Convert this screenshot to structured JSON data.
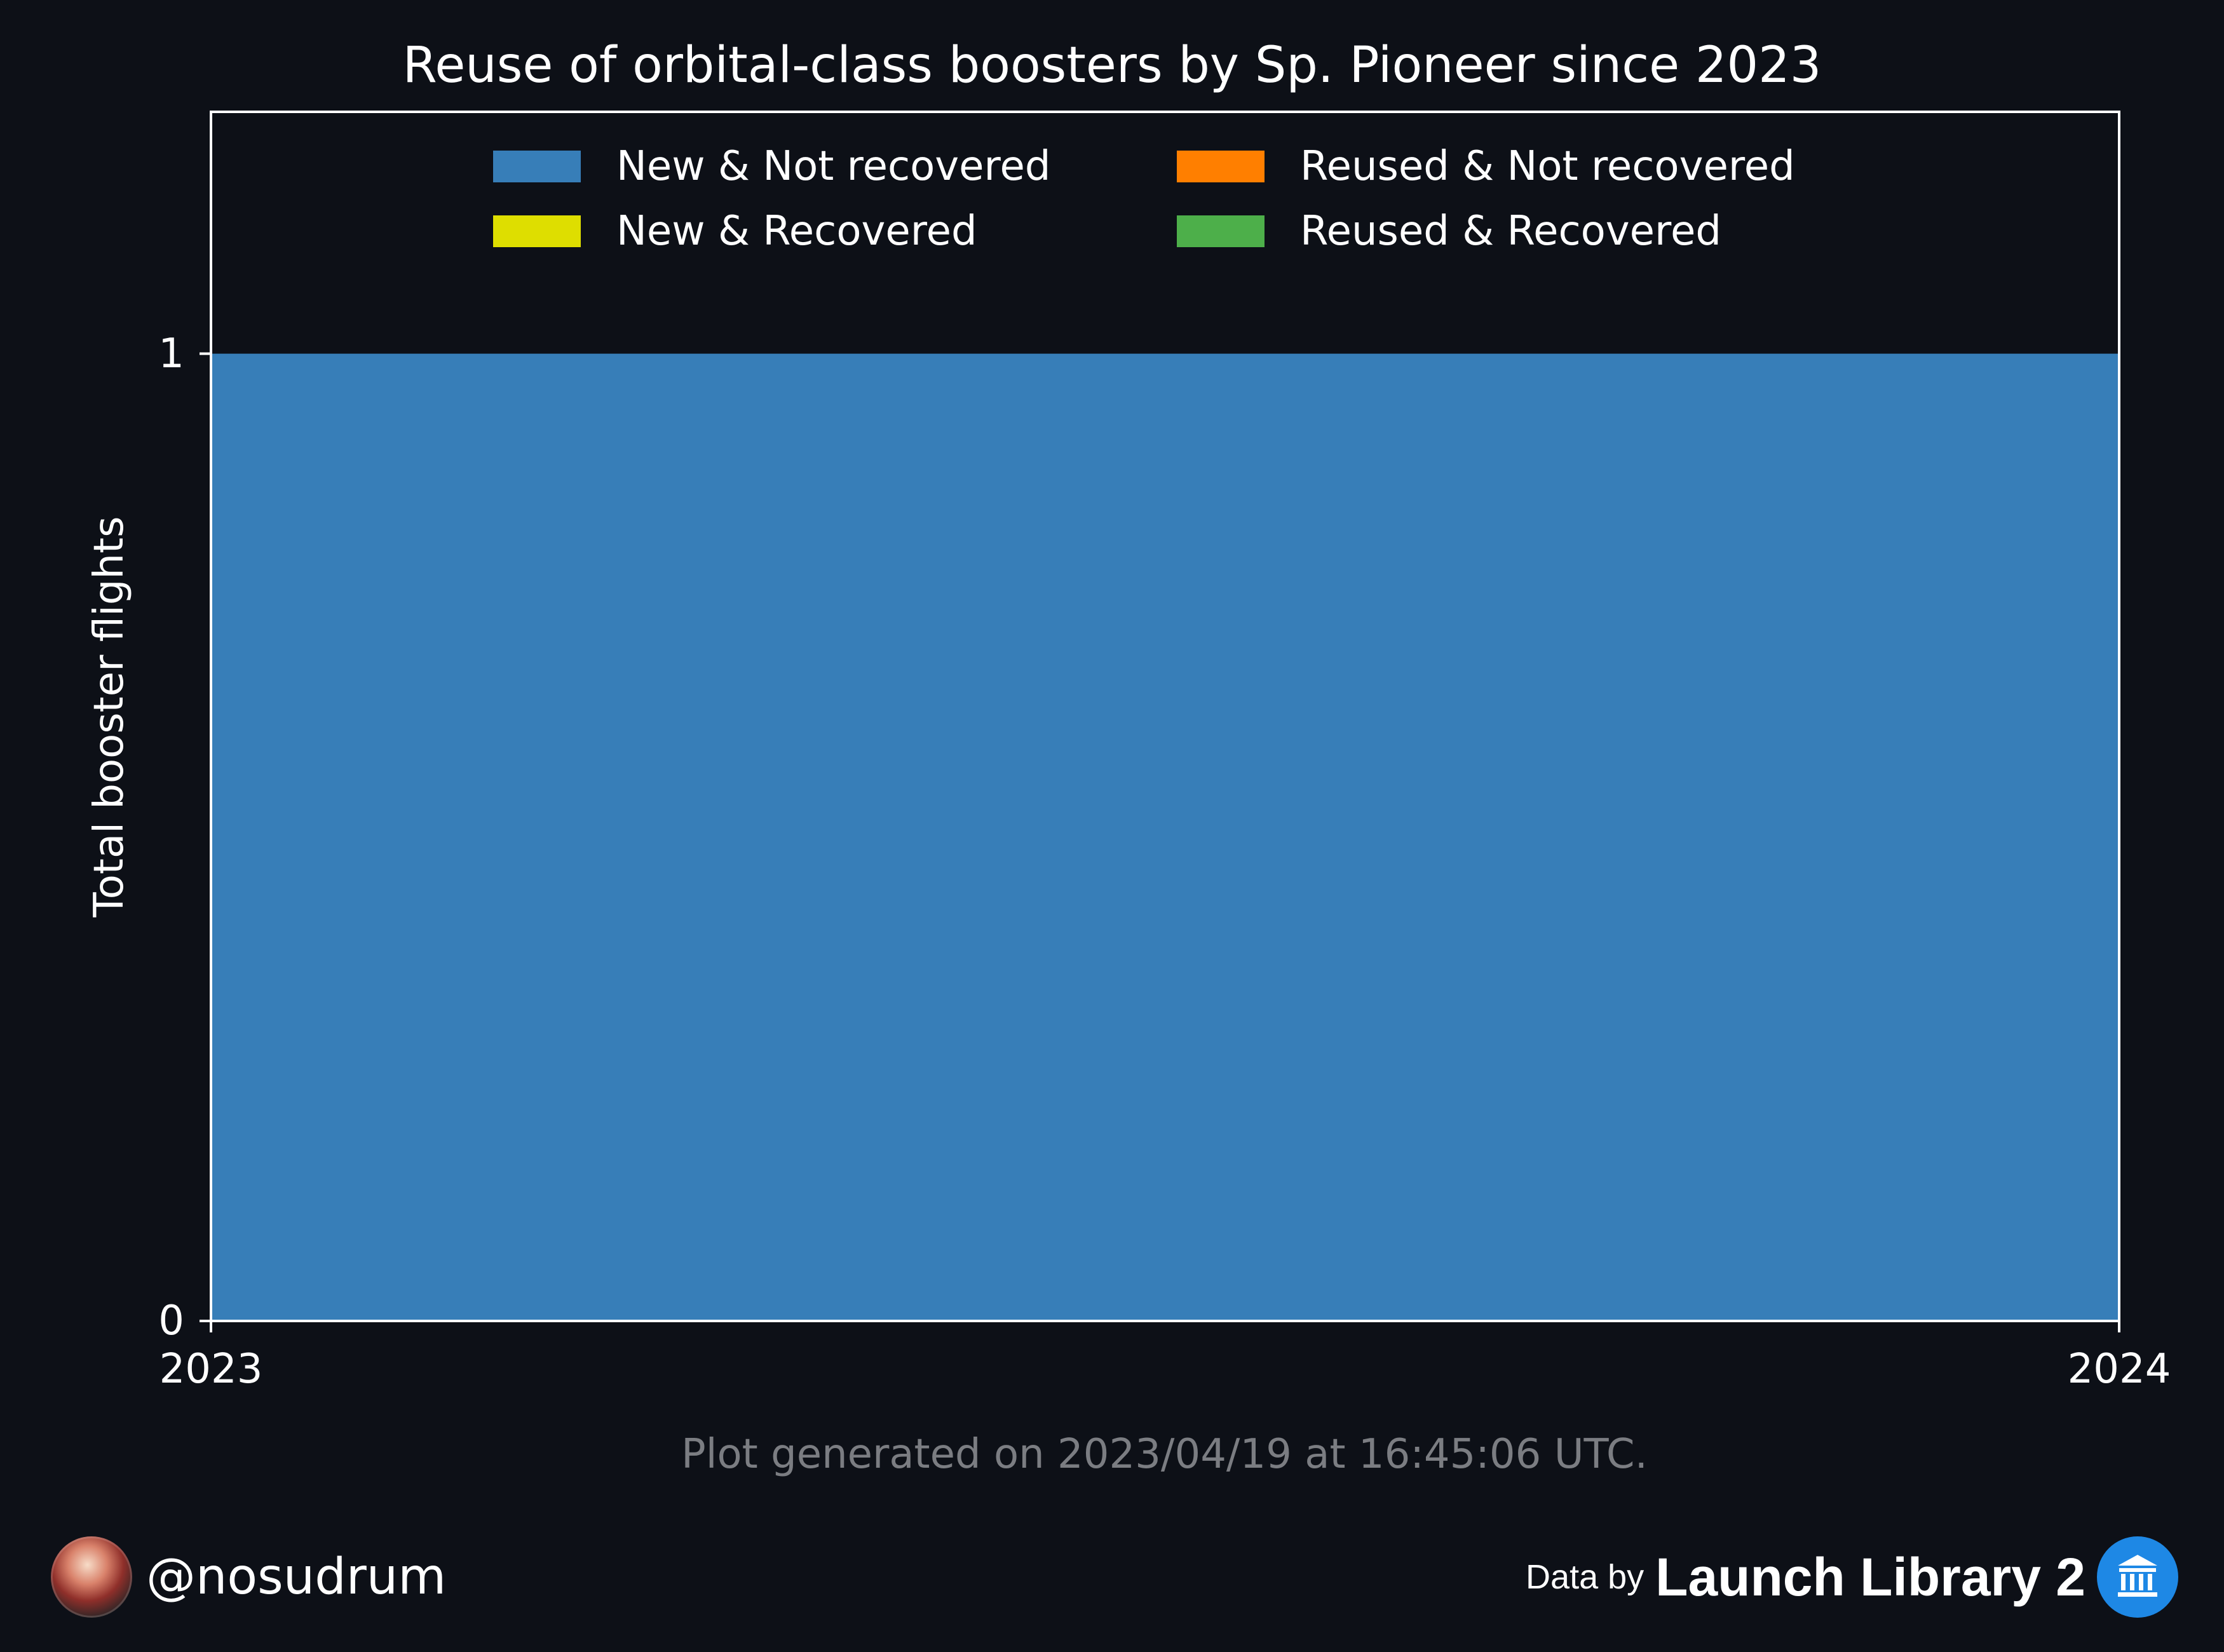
{
  "chart_data": {
    "type": "area",
    "title": "Reuse of orbital-class boosters by Sp. Pioneer since 2023",
    "xlabel": "",
    "ylabel": "Total booster flights",
    "x": [
      2023,
      2024
    ],
    "xlim": [
      2023,
      2024
    ],
    "ylim": [
      0,
      1.25
    ],
    "xticks": [
      "2023",
      "2024"
    ],
    "yticks": [
      "0",
      "1"
    ],
    "grid": false,
    "legend_position": "top",
    "series": [
      {
        "name": "New & Not recovered",
        "values": [
          1,
          1
        ],
        "color": "#377eb8"
      },
      {
        "name": "New & Recovered",
        "values": [
          0,
          0
        ],
        "color": "#dede00"
      },
      {
        "name": "Reused & Not recovered",
        "values": [
          0,
          0
        ],
        "color": "#ff7f00"
      },
      {
        "name": "Reused & Recovered",
        "values": [
          0,
          0
        ],
        "color": "#4daf4a"
      }
    ]
  },
  "footer": {
    "generated_note": "Plot generated on 2023/04/19 at 16:45:06 UTC.",
    "handle": "@nosudrum",
    "source_prefix": "Data by",
    "source_name": "Launch Library 2",
    "source_logo_icon": "institution-icon"
  },
  "colors": {
    "background": "#0d1017",
    "text": "#ffffff",
    "muted_text": "#7b7d82",
    "axis": "#ffffff"
  }
}
